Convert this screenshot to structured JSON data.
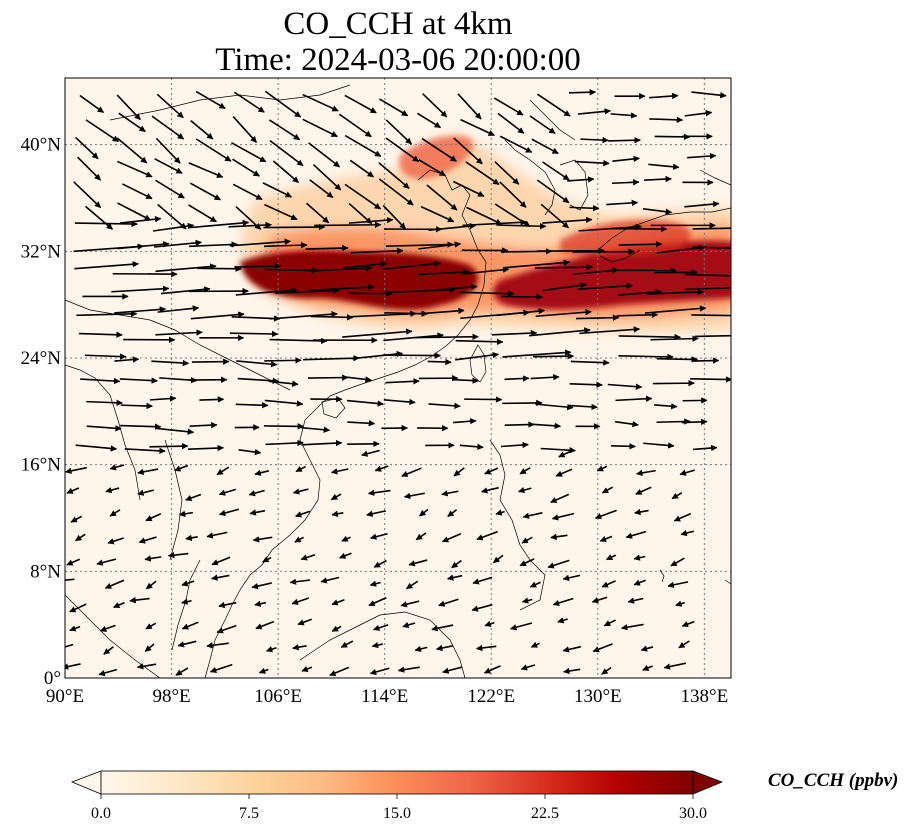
{
  "title": {
    "line1": "CO_CCH at 4km",
    "line2": "Time: 2024-03-06 20:00:00"
  },
  "map": {
    "lon_range": [
      90,
      140
    ],
    "lat_range": [
      0,
      45
    ],
    "lon_ticks": [
      {
        "value": 90,
        "label": "90°E"
      },
      {
        "value": 98,
        "label": "98°E"
      },
      {
        "value": 106,
        "label": "106°E"
      },
      {
        "value": 114,
        "label": "114°E"
      },
      {
        "value": 122,
        "label": "122°E"
      },
      {
        "value": 130,
        "label": "130°E"
      },
      {
        "value": 138,
        "label": "138°E"
      }
    ],
    "lat_ticks": [
      {
        "value": 0,
        "label": "0°"
      },
      {
        "value": 8,
        "label": "8°N"
      },
      {
        "value": 16,
        "label": "16°N"
      },
      {
        "value": 24,
        "label": "24°N"
      },
      {
        "value": 32,
        "label": "32°N"
      },
      {
        "value": 40,
        "label": "40°N"
      }
    ],
    "gridlines": true,
    "background_color": "#fff5eb",
    "coastline_color": "#000000",
    "vector_color": "#000000"
  },
  "colorbar": {
    "label": "CO_CCH (ppbv)",
    "colormap": "OrRd",
    "range": [
      0,
      30
    ],
    "extend": "both",
    "ticks": [
      "0.0",
      "7.5",
      "15.0",
      "22.5",
      "30.0"
    ],
    "stops": [
      "#fff7ec",
      "#fee8c8",
      "#fdd49e",
      "#fdbb84",
      "#fc8d59",
      "#ef6548",
      "#d7301f",
      "#b30000",
      "#7f0000"
    ]
  }
}
